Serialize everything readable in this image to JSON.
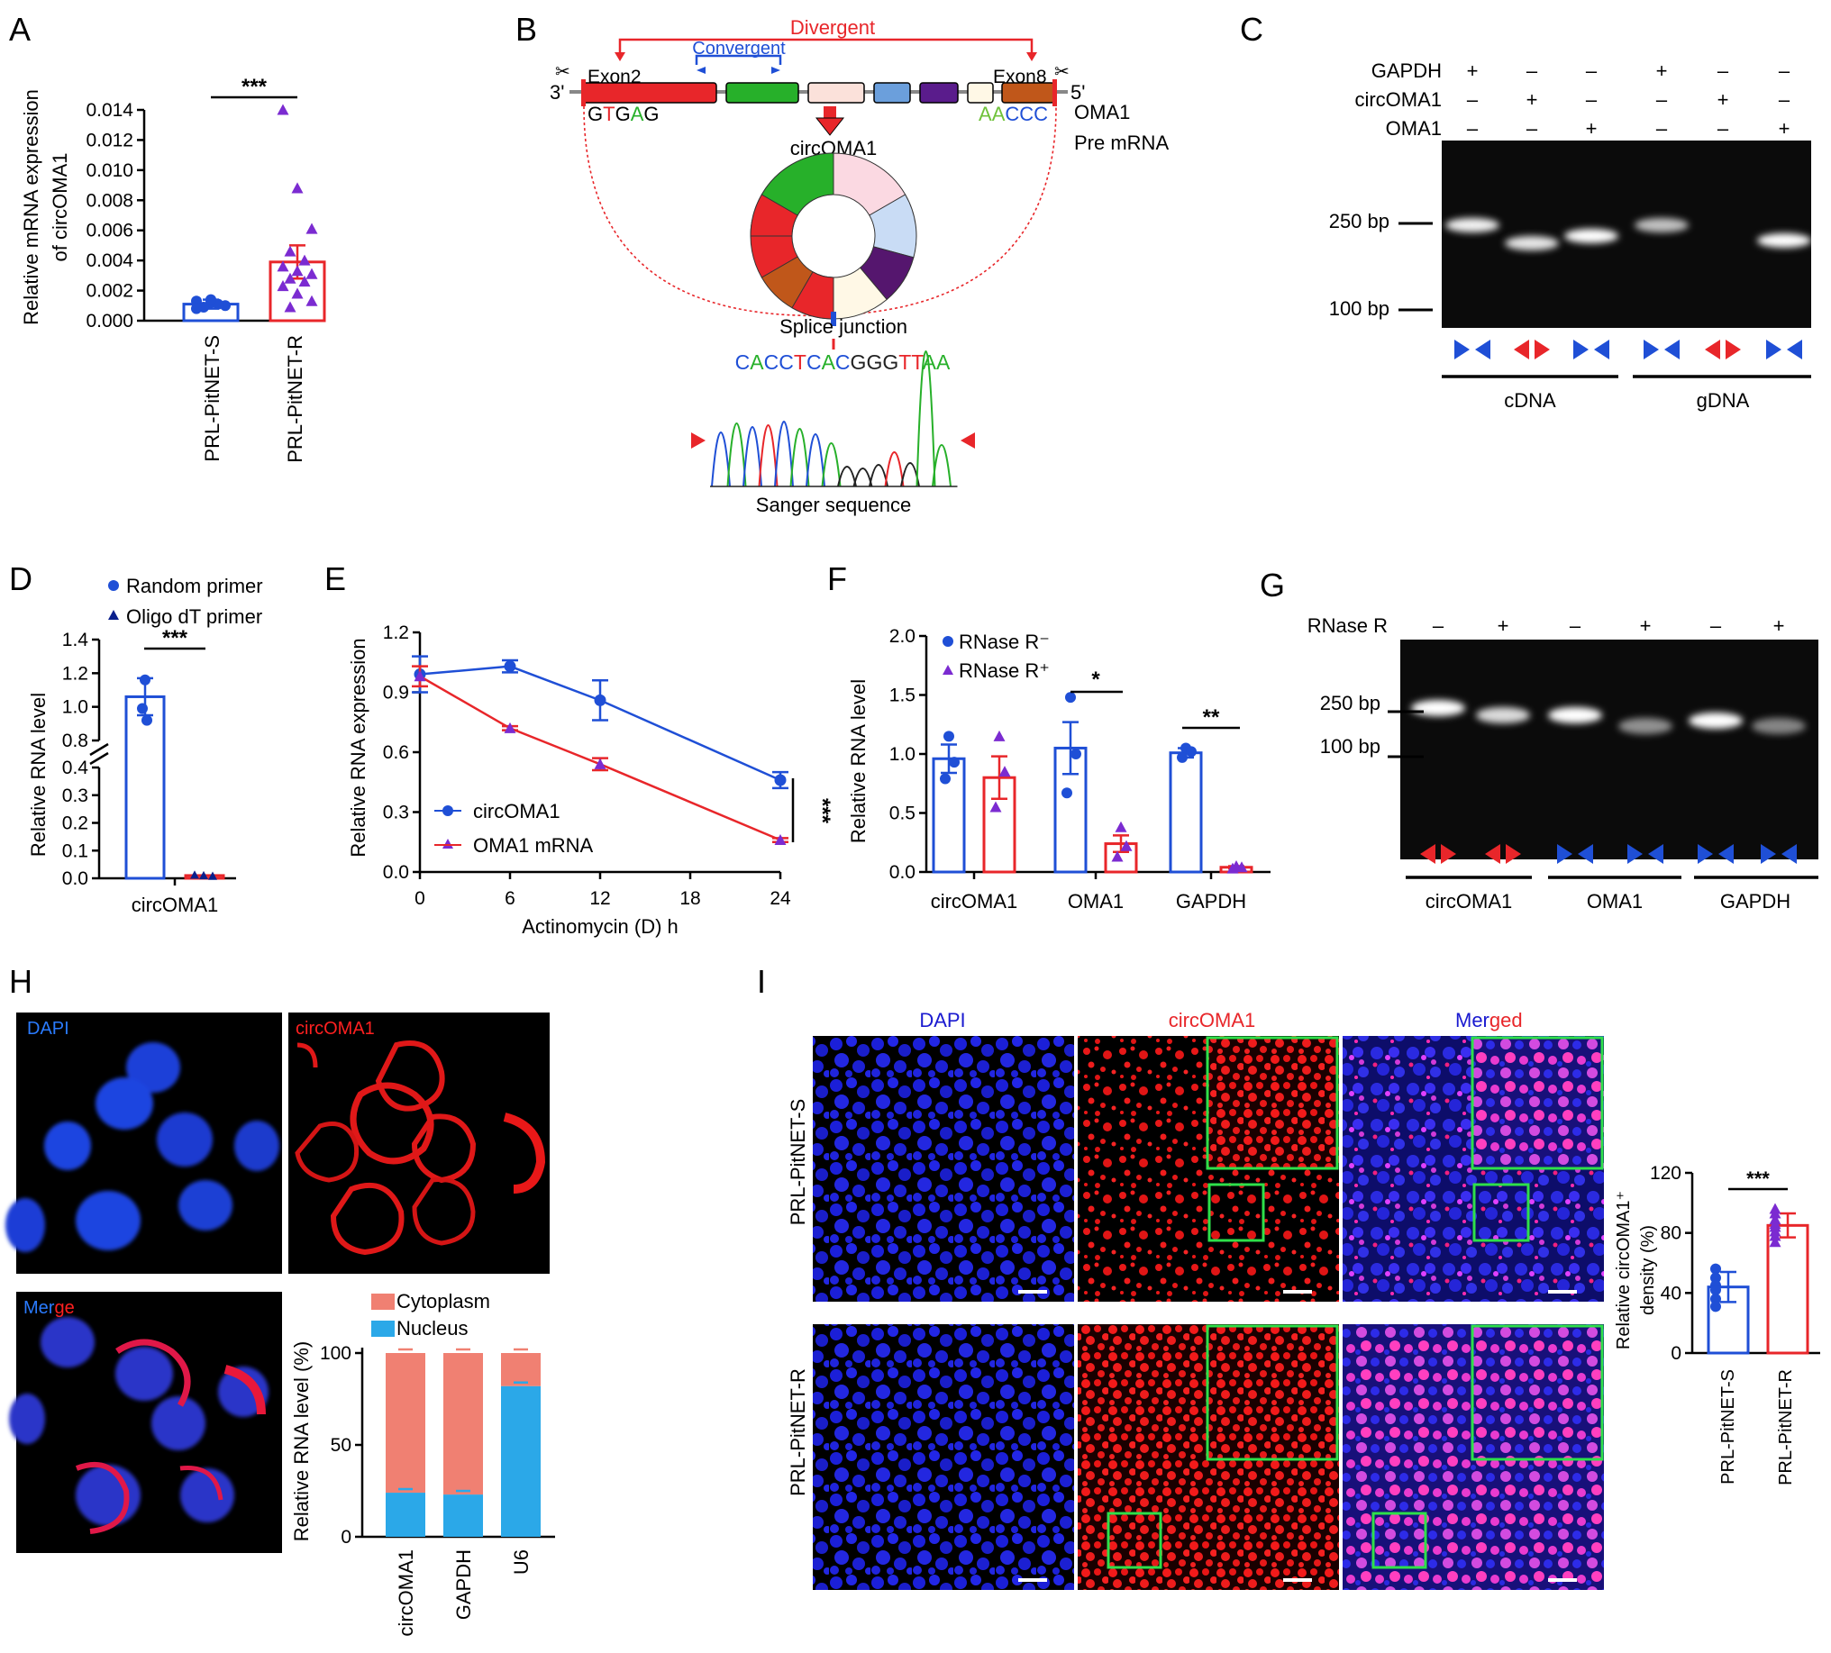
{
  "colors": {
    "blue": "#1f4fd6",
    "red": "#e8262a",
    "purple": "#7b2bd1",
    "green": "#2ee04a",
    "navy": "#0a1f8c",
    "salmon": "#f08072",
    "cyan": "#2ba8e8"
  },
  "panels": {
    "A": {
      "letter": "A",
      "chart_data": {
        "type": "bar",
        "ylabel": "Relative mRNA expression of circOMA1",
        "ylim": [
          0,
          0.014
        ],
        "yticks": [
          "0.000",
          "0.002",
          "0.004",
          "0.006",
          "0.008",
          "0.010",
          "0.012",
          "0.014"
        ],
        "categories": [
          "PRL-PitNET-S",
          "PRL-PitNET-R"
        ],
        "values": [
          0.0011,
          0.0039
        ],
        "errors": [
          0.0003,
          0.0011
        ],
        "points": [
          [
            0.0013,
            0.0012,
            0.001,
            0.0009,
            0.0011,
            0.0008,
            0.0014
          ],
          [
            0.014,
            0.0088,
            0.0061,
            0.0046,
            0.004,
            0.0036,
            0.0033,
            0.0031,
            0.0028,
            0.0026,
            0.0023,
            0.0018,
            0.0013,
            0.0009
          ]
        ],
        "significance": "***"
      }
    },
    "B": {
      "letter": "B",
      "divergent": "Divergent",
      "convergent": "Convergent",
      "end3": "3'",
      "end5": "5'",
      "exon2": "Exon2",
      "exon8": "Exon8",
      "seq_left": "GTGAG",
      "seq_right": "AACCC",
      "oma1": "OMA1",
      "premrna": "Pre mRNA",
      "circ_label": "circOMA1",
      "splice": "Splice junction",
      "junction_seq": "CACCTCACGGGTTAA",
      "sanger": "Sanger sequence"
    },
    "C": {
      "letter": "C",
      "rows": [
        {
          "label": "GAPDH",
          "marks": [
            "+",
            "–",
            "–",
            "+",
            "–",
            "–"
          ]
        },
        {
          "label": "circOMA1",
          "marks": [
            "–",
            "+",
            "–",
            "–",
            "+",
            "–"
          ]
        },
        {
          "label": "OMA1",
          "marks": [
            "–",
            "–",
            "+",
            "–",
            "–",
            "+"
          ]
        }
      ],
      "ladder": [
        "250 bp",
        "100 bp"
      ],
      "groups": [
        "cDNA",
        "gDNA"
      ]
    },
    "D": {
      "letter": "D",
      "legend": [
        "Random primer",
        "Oligo dT primer"
      ],
      "ylabel": "Relative RNA level",
      "chart_data": {
        "type": "bar",
        "categories": [
          "circOMA1"
        ],
        "series": [
          {
            "name": "Random primer",
            "values": [
              1.06
            ],
            "errors": [
              0.11
            ],
            "points": [
              1.16,
              0.99,
              0.92
            ]
          },
          {
            "name": "Oligo dT primer",
            "values": [
              0.01
            ],
            "errors": [
              0.003
            ],
            "points": [
              0.012,
              0.01,
              0.008
            ]
          }
        ],
        "yticks_upper": [
          "0.8",
          "1.0",
          "1.2",
          "1.4"
        ],
        "yticks_lower": [
          "0.0",
          "0.1",
          "0.2",
          "0.3",
          "0.4"
        ],
        "significance": "***"
      }
    },
    "E": {
      "letter": "E",
      "ylabel": "Relative RNA expression",
      "xlabel": "Actinomycin (D) h",
      "chart_data": {
        "type": "line",
        "x": [
          0,
          6,
          12,
          24
        ],
        "xticks": [
          "0",
          "6",
          "12",
          "18",
          "24"
        ],
        "yticks": [
          "0.0",
          "0.3",
          "0.6",
          "0.9",
          "1.2"
        ],
        "ylim": [
          0,
          1.2
        ],
        "series": [
          {
            "name": "circOMA1",
            "values": [
              0.99,
              1.03,
              0.86,
              0.46
            ],
            "errors": [
              0.09,
              0.03,
              0.1,
              0.04
            ]
          },
          {
            "name": "OMA1 mRNA",
            "values": [
              0.98,
              0.72,
              0.54,
              0.16
            ],
            "errors": [
              0.05,
              0.01,
              0.03,
              0.01
            ]
          }
        ],
        "significance": "***"
      }
    },
    "F": {
      "letter": "F",
      "legend": [
        "RNase R⁻",
        "RNase R⁺"
      ],
      "ylabel": "Relative RNA level",
      "chart_data": {
        "type": "bar",
        "categories": [
          "circOMA1",
          "OMA1",
          "GAPDH"
        ],
        "yticks": [
          "0.0",
          "0.5",
          "1.0",
          "1.5",
          "2.0"
        ],
        "ylim": [
          0,
          2.0
        ],
        "series": [
          {
            "name": "RNase R⁻",
            "values": [
              0.96,
              1.05,
              1.01
            ],
            "errors": [
              0.12,
              0.22,
              0.04
            ],
            "points": [
              [
                1.15,
                0.93,
                0.79
              ],
              [
                1.48,
                1.0,
                0.67
              ],
              [
                1.05,
                1.02,
                0.97
              ]
            ]
          },
          {
            "name": "RNase R⁺",
            "values": [
              0.8,
              0.24,
              0.04
            ],
            "errors": [
              0.18,
              0.07,
              0.01
            ],
            "points": [
              [
                1.15,
                0.85,
                0.55
              ],
              [
                0.38,
                0.22,
                0.13
              ],
              [
                0.05,
                0.04,
                0.03
              ]
            ]
          }
        ],
        "significance": [
          "",
          "*",
          "**"
        ]
      }
    },
    "G": {
      "letter": "G",
      "rnase": "RNase R",
      "marks": [
        "–",
        "+",
        "–",
        "+",
        "–",
        "+"
      ],
      "ladder": [
        "250 bp",
        "100 bp"
      ],
      "groups": [
        "circOMA1",
        "OMA1",
        "GAPDH"
      ]
    },
    "H": {
      "letter": "H",
      "labels": {
        "dapi": "DAPI",
        "circ": "circOMA1",
        "merge_a": "Mer",
        "merge_b": "ge"
      },
      "legend": [
        "Cytoplasm",
        "Nucleus"
      ],
      "ylabel": "Relative RNA level (%)",
      "chart_data": {
        "type": "bar",
        "categories": [
          "circOMA1",
          "GAPDH",
          "U6"
        ],
        "yticks": [
          "0",
          "50",
          "100"
        ],
        "ylim": [
          0,
          100
        ],
        "series": [
          {
            "name": "Nucleus",
            "values": [
              24,
              23,
              82
            ]
          },
          {
            "name": "Cytoplasm",
            "values": [
              76,
              77,
              18
            ]
          }
        ]
      }
    },
    "I": {
      "letter": "I",
      "columns": [
        "DAPI",
        "circOMA1",
        "Mer",
        "ged"
      ],
      "rows": [
        "PRL-PitNET-S",
        "PRL-PitNET-R"
      ],
      "ylabel": "Relative circOMA1⁺ density (%)",
      "chart_data": {
        "type": "bar",
        "categories": [
          "PRL-PitNET-S",
          "PRL-PitNET-R"
        ],
        "yticks": [
          "0",
          "40",
          "80",
          "120"
        ],
        "ylim": [
          0,
          120
        ],
        "values": [
          44,
          85
        ],
        "errors": [
          10,
          8
        ],
        "points": [
          [
            56,
            50,
            45,
            42,
            36,
            31
          ],
          [
            96,
            93,
            89,
            86,
            84,
            81,
            78,
            74
          ]
        ],
        "significance": "***"
      }
    }
  }
}
